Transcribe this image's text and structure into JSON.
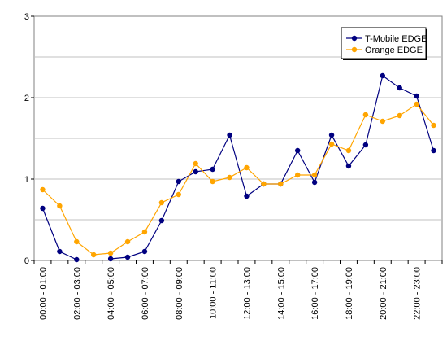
{
  "chart_data": {
    "type": "line",
    "x": [
      "00:00 - 01:00",
      "01:00 - 02:00",
      "02:00 - 03:00",
      "03:00 - 04:00",
      "04:00 - 05:00",
      "05:00 - 06:00",
      "06:00 - 07:00",
      "07:00 - 08:00",
      "08:00 - 09:00",
      "09:00 - 10:00",
      "10:00 - 11:00",
      "11:00 - 12:00",
      "12:00 - 13:00",
      "13:00 - 14:00",
      "14:00 - 15:00",
      "15:00 - 16:00",
      "16:00 - 17:00",
      "17:00 - 18:00",
      "18:00 - 19:00",
      "19:00 - 20:00",
      "20:00 - 21:00",
      "21:00 - 22:00",
      "22:00 - 23:00",
      "23:00 - 24:00"
    ],
    "tick_labels": [
      "00:00 - 01:00",
      "02:00 - 03:00",
      "04:00 - 05:00",
      "06:00 - 07:00",
      "08:00 - 09:00",
      "10:00 - 11:00",
      "12:00 - 13:00",
      "14:00 - 15:00",
      "16:00 - 17:00",
      "18:00 - 19:00",
      "20:00 - 21:00",
      "22:00 - 23:00"
    ],
    "series": [
      {
        "name": "T-Mobile EDGE",
        "color": "#000080",
        "values": [
          0.64,
          0.11,
          0.01,
          null,
          0.02,
          0.04,
          0.11,
          0.49,
          0.97,
          1.09,
          1.12,
          1.54,
          0.79,
          0.94,
          0.94,
          1.35,
          0.96,
          1.54,
          1.16,
          1.42,
          2.27,
          2.12,
          2.02,
          1.35
        ]
      },
      {
        "name": "Orange EDGE",
        "color": "#FFA500",
        "values": [
          0.87,
          0.67,
          0.23,
          0.07,
          0.09,
          0.23,
          0.35,
          0.71,
          0.81,
          1.19,
          0.97,
          1.02,
          1.14,
          0.94,
          0.94,
          1.05,
          1.05,
          1.43,
          1.35,
          1.79,
          1.71,
          1.78,
          1.92,
          1.66
        ]
      }
    ],
    "y_ticks": [
      "0",
      "1",
      "2",
      "3"
    ],
    "ylim": [
      0,
      3
    ],
    "grid": true,
    "legend": "top-right"
  }
}
